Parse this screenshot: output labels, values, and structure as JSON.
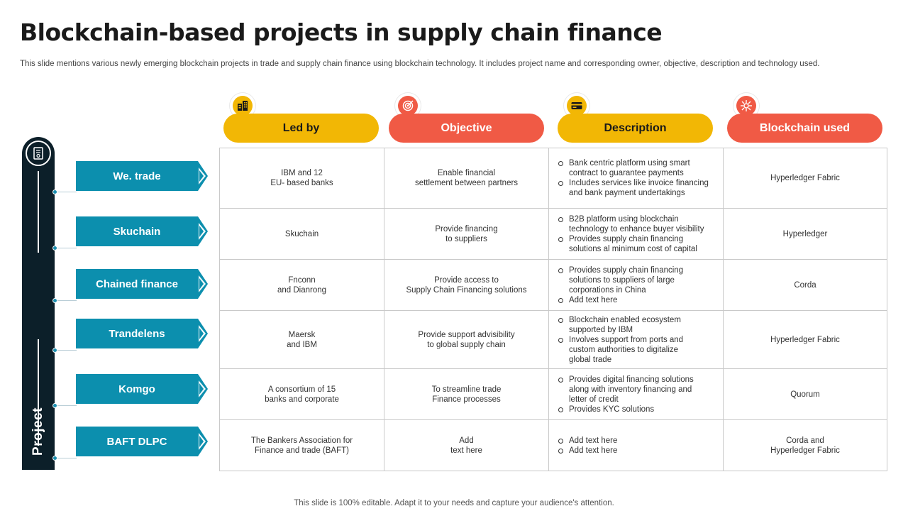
{
  "title": "Blockchain-based projects in supply chain finance",
  "subtitle": "This slide mentions various newly emerging blockchain projects in trade and supply chain finance using blockchain technology. It includes project name and corresponding owner, objective, description and technology used.",
  "footer": "This slide is 100% editable. Adapt it to your needs and capture your audience's attention.",
  "side_label": "Project",
  "colors": {
    "yellow": "#f2b705",
    "red": "#f05a45",
    "teal": "#0c8fae",
    "navy": "#0c1f29"
  },
  "columns": [
    {
      "label": "Led by",
      "icon": "buildings-icon",
      "color": "yellow"
    },
    {
      "label": "Objective",
      "icon": "target-icon",
      "color": "red"
    },
    {
      "label": "Description",
      "icon": "card-icon",
      "color": "yellow"
    },
    {
      "label": "Blockchain used",
      "icon": "network-icon",
      "color": "red"
    }
  ],
  "rows": [
    {
      "project": "We. trade",
      "led_by": "IBM  and 12\nEU- based banks",
      "objective": "Enable financial\nsettlement between partners",
      "description": [
        "Bank centric platform using smart\ncontract to guarantee payments",
        "Includes services like invoice financing\nand bank payment undertakings"
      ],
      "blockchain": "Hyperledger Fabric"
    },
    {
      "project": "Skuchain",
      "led_by": "Skuchain",
      "objective": "Provide financing\nto suppliers",
      "description": [
        "B2B platform using blockchain\ntechnology to  enhance buyer visibility",
        "Provides supply chain financing\nsolutions al minimum cost of capital"
      ],
      "blockchain": "Hyperledger"
    },
    {
      "project": "Chained finance",
      "led_by": "Fnconn\nand Dianrong",
      "objective": "Provide access to\nSupply Chain Financing solutions",
      "description": [
        "Provides supply chain financing\nsolutions to suppliers of large\ncorporations in China",
        "Add text here"
      ],
      "blockchain": "Corda"
    },
    {
      "project": "Trandelens",
      "led_by": "Maersk\nand IBM",
      "objective": "Provide support advisibility\nto global supply chain",
      "description": [
        "Blockchain enabled ecosystem\nsupported by IBM",
        "Involves support from ports and\ncustom authorities to digitalize\nglobal trade"
      ],
      "blockchain": "Hyperledger Fabric"
    },
    {
      "project": "Komgo",
      "led_by": "A consortium of 15\nbanks and corporate",
      "objective": "To streamline trade\nFinance processes",
      "description": [
        "Provides digital financing solutions\nalong with inventory financing and\nletter of credit",
        "Provides KYC solutions"
      ],
      "blockchain": "Quorum"
    },
    {
      "project": "BAFT DLPC",
      "led_by": "The Bankers Association for\nFinance and trade (BAFT)",
      "objective": "Add\ntext here",
      "description": [
        "Add text here",
        "Add text here"
      ],
      "blockchain": "Corda and\nHyperledger Fabric"
    }
  ]
}
